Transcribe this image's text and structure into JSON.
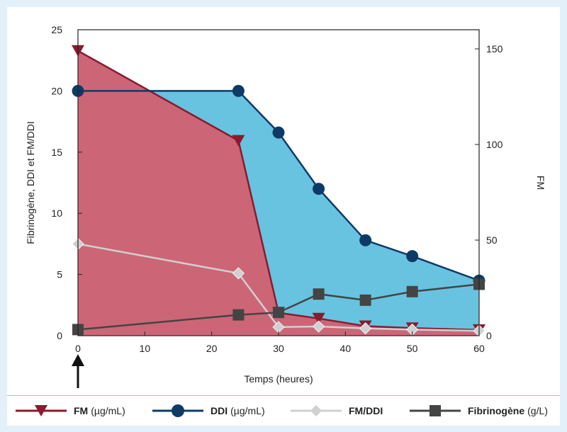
{
  "chart_data": {
    "type": "area",
    "xlabel": "Temps (heures)",
    "ylabel_left": "Fibrinogène, DDI et FM/DDI",
    "ylabel_right": "FM",
    "xlim": [
      0,
      60
    ],
    "ylim_left": [
      0,
      25
    ],
    "ylim_right": [
      0,
      160
    ],
    "x_ticks": [
      0,
      10,
      20,
      30,
      40,
      50,
      60
    ],
    "y_ticks_left": [
      0,
      5,
      10,
      15,
      20,
      25
    ],
    "y_ticks_right": [
      0,
      50,
      100,
      150
    ],
    "grid": false,
    "annotation": "arrow at x = 0",
    "series": [
      {
        "name": "FM",
        "unit": "(µg/mL)",
        "axis": "right",
        "marker": "triangle-down",
        "color": "#8b1a2e",
        "fill": "#cc6677",
        "x": [
          0,
          24,
          30,
          36,
          43,
          50,
          60
        ],
        "y": [
          149,
          102,
          12,
          9,
          5,
          4,
          3
        ]
      },
      {
        "name": "DDI",
        "unit": "(µg/mL)",
        "axis": "left",
        "marker": "circle",
        "color": "#0d3b66",
        "fill": "#68c3e0",
        "x": [
          0,
          24,
          30,
          36,
          43,
          50,
          60
        ],
        "y": [
          20,
          20,
          16.6,
          12,
          7.8,
          6.5,
          4.5
        ]
      },
      {
        "name": "FM/DDI",
        "unit": "",
        "axis": "left",
        "marker": "diamond",
        "color": "#d0d0d0",
        "x": [
          0,
          24,
          30,
          36,
          43,
          50,
          60
        ],
        "y": [
          7.5,
          5.1,
          0.7,
          0.75,
          0.6,
          0.5,
          0.4
        ]
      },
      {
        "name": "Fibrinogène",
        "unit": "(g/L)",
        "axis": "left",
        "marker": "square",
        "color": "#444444",
        "x": [
          0,
          24,
          30,
          36,
          43,
          50,
          60
        ],
        "y": [
          0.5,
          1.7,
          1.9,
          3.4,
          2.9,
          3.6,
          4.2
        ]
      }
    ]
  }
}
